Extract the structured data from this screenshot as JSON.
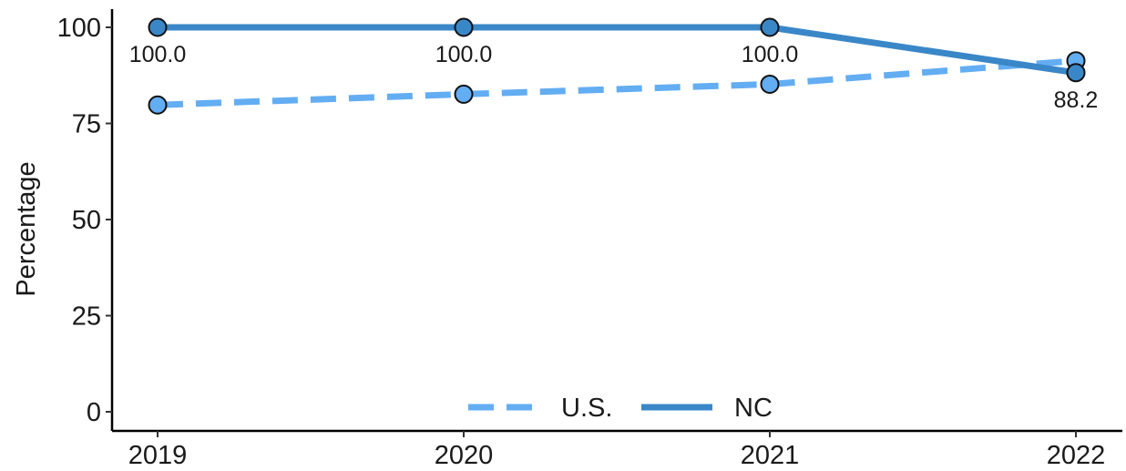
{
  "chart_data": {
    "type": "line",
    "title": "",
    "xlabel": "",
    "ylabel": "Percentage",
    "x": [
      "2019",
      "2020",
      "2021",
      "2022"
    ],
    "ylim": [
      0,
      105
    ],
    "yticks": [
      0,
      25,
      50,
      75,
      100
    ],
    "grid": false,
    "legend_position": "bottom-center",
    "series": [
      {
        "name": "U.S.",
        "values": [
          79.8,
          82.6,
          85.2,
          91.3
        ],
        "color": "#63adf2",
        "line_style": "dashed",
        "labels": []
      },
      {
        "name": "NC",
        "values": [
          100.0,
          100.0,
          100.0,
          88.2
        ],
        "color": "#3a87c8",
        "line_style": "solid",
        "labels": [
          "100.0",
          "100.0",
          "100.0",
          "88.2"
        ]
      }
    ]
  }
}
